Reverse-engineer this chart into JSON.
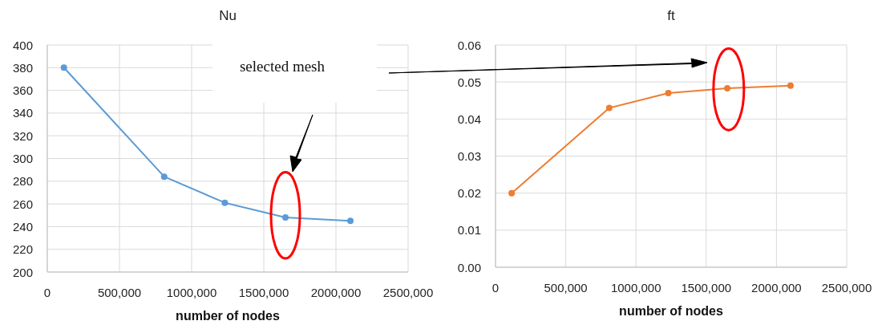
{
  "chart_data": [
    {
      "type": "line",
      "title": "Nu",
      "xlabel": "number of nodes",
      "x": [
        115000,
        810000,
        1230000,
        1650000,
        2100000
      ],
      "series": [
        {
          "color": "#5b9bd5",
          "values": [
            380,
            284,
            261,
            248,
            245
          ]
        }
      ],
      "xlim": [
        0,
        2500000
      ],
      "xticks": [
        0,
        {
          "value": 500000,
          "label": "500,000"
        },
        {
          "value": 1000000,
          "label": "1000,000"
        },
        {
          "value": 1500000,
          "label": "1500,000"
        },
        {
          "value": 2000000,
          "label": "2000,000"
        },
        {
          "value": 2500000,
          "label": "2500,000"
        }
      ],
      "ylim": [
        200,
        400
      ],
      "yticks": [
        200,
        220,
        240,
        260,
        280,
        300,
        320,
        340,
        360,
        380,
        400
      ],
      "grid": true,
      "marker": "circle",
      "annotations": [
        "selected mesh"
      ]
    },
    {
      "type": "line",
      "title": "ft",
      "xlabel": "number of nodes",
      "x": [
        115000,
        810000,
        1230000,
        1650000,
        2100000
      ],
      "series": [
        {
          "color": "#ed7d31",
          "values": [
            0.02,
            0.043,
            0.047,
            0.0483,
            0.049
          ]
        }
      ],
      "xlim": [
        0,
        2500000
      ],
      "xticks": [
        0,
        {
          "value": 500000,
          "label": "500,000"
        },
        {
          "value": 1000000,
          "label": "1000,000"
        },
        {
          "value": 1500000,
          "label": "1500,000"
        },
        {
          "value": 2000000,
          "label": "2000,000"
        },
        {
          "value": 2500000,
          "label": "2500,000"
        }
      ],
      "ylim": [
        0,
        0.06
      ],
      "yticks": [
        {
          "value": 0,
          "label": "0.00"
        },
        0.01,
        0.02,
        0.03,
        0.04,
        0.05,
        0.06
      ],
      "grid": true,
      "marker": "circle"
    }
  ]
}
